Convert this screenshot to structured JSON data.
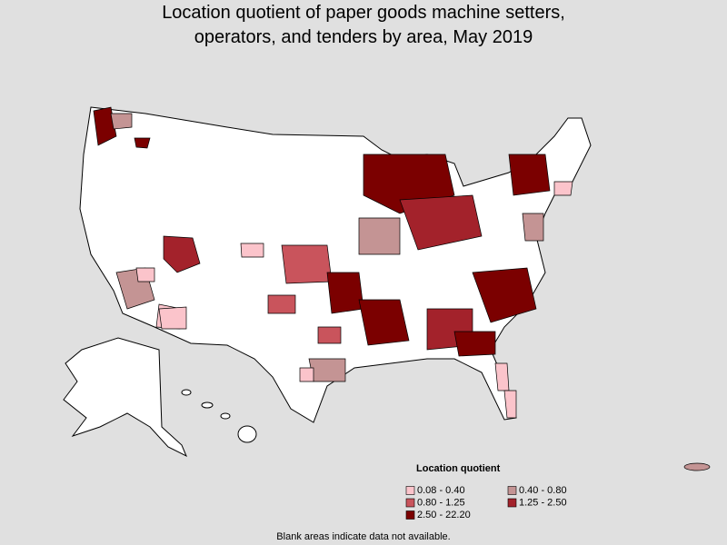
{
  "title": [
    "Location quotient of paper goods machine setters,",
    "operators, and tenders by area, May 2019"
  ],
  "legend": {
    "title": "Location quotient",
    "items": [
      {
        "label": "0.08 - 0.40",
        "color": "#fbc4cb"
      },
      {
        "label": "0.40 - 0.80",
        "color": "#c49494"
      },
      {
        "label": "0.80 - 1.25",
        "color": "#c9545c"
      },
      {
        "label": "1.25 - 2.50",
        "color": "#a3222b"
      },
      {
        "label": "2.50 - 22.20",
        "color": "#7b0000"
      }
    ]
  },
  "note": "Blank areas indicate data not available."
}
